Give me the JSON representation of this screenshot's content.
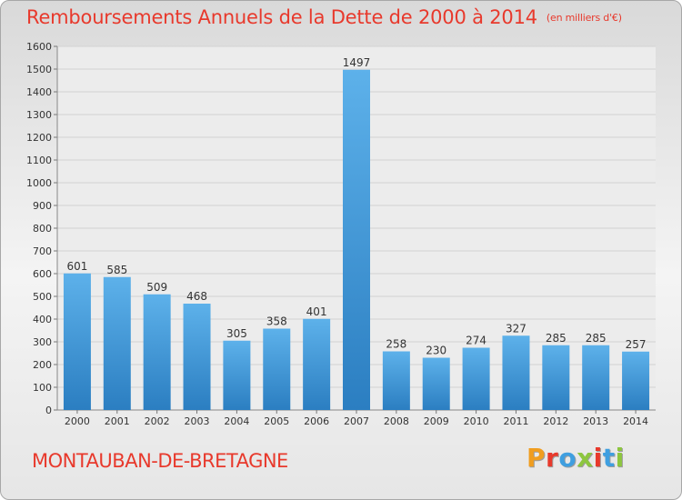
{
  "header": {
    "title": "Remboursements Annuels de la Dette de 2000 à 2014",
    "unit": "(en milliers d'€)"
  },
  "footer": {
    "commune": "MONTAUBAN-DE-BRETAGNE",
    "brand": "Proxiti"
  },
  "colors": {
    "title": "#e8392c",
    "bar_light": "#5db1ea",
    "bar_dark": "#2b7ec1",
    "logo": [
      "#f09d1f",
      "#e8392c",
      "#3f9fe0",
      "#8dc63f",
      "#e8392c",
      "#3f9fe0",
      "#8dc63f"
    ]
  },
  "chart_data": {
    "type": "bar",
    "title": "Remboursements Annuels de la Dette de 2000 à 2014",
    "xlabel": "",
    "ylabel": "",
    "ylim": [
      0,
      1600
    ],
    "yticks": [
      0,
      100,
      200,
      300,
      400,
      500,
      600,
      700,
      800,
      900,
      1000,
      1100,
      1200,
      1300,
      1400,
      1500,
      1600
    ],
    "categories": [
      "2000",
      "2001",
      "2002",
      "2003",
      "2004",
      "2005",
      "2006",
      "2007",
      "2008",
      "2009",
      "2010",
      "2011",
      "2012",
      "2013",
      "2014"
    ],
    "values": [
      601,
      585,
      509,
      468,
      305,
      358,
      401,
      1497,
      258,
      230,
      274,
      327,
      285,
      285,
      257
    ],
    "grid": true
  }
}
